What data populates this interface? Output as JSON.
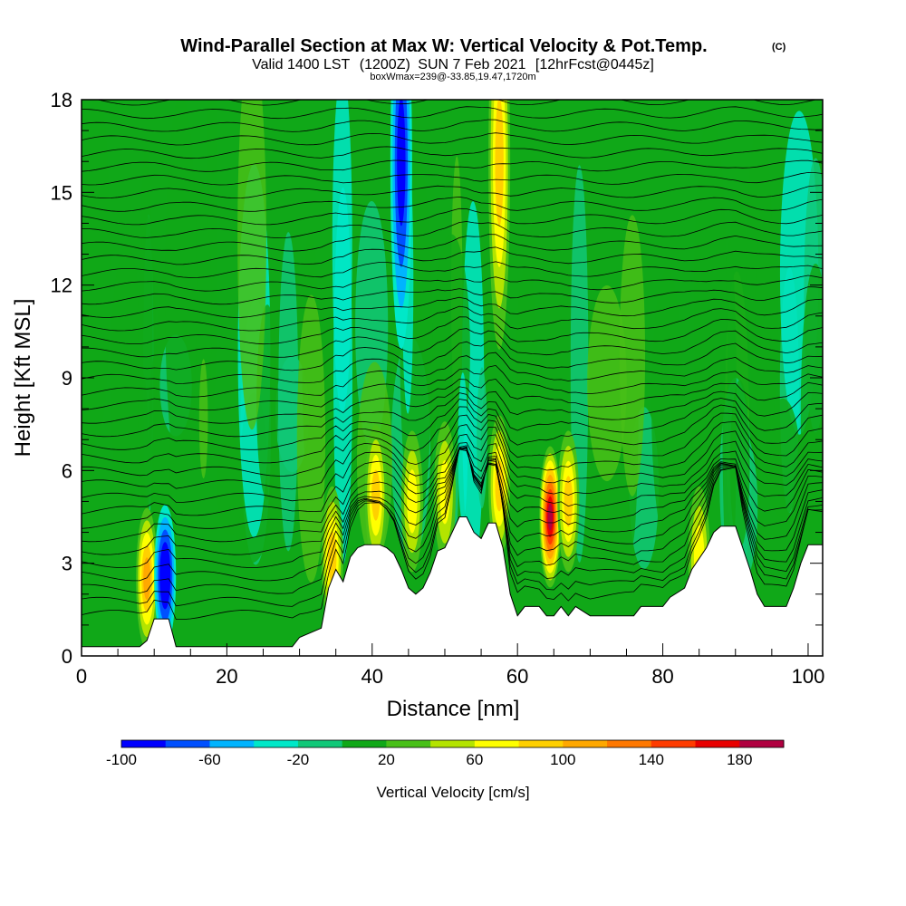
{
  "chart_data": {
    "type": "heatmap",
    "title": "Wind-Parallel Section at Max W: Vertical Velocity & Pot.Temp.",
    "title_mark": "(C)",
    "subtitle_main": "Valid 1400 LST",
    "subtitle_z": "(1200Z)",
    "subtitle_date": "SUN 7 Feb 2021",
    "subtitle_fcst": "[12hrFcst@0445z]",
    "info_line": "boxWmax=239@-33.85,19.47,1720m",
    "xlabel": "Distance [nm]",
    "ylabel": "Height [Kft MSL]",
    "xlim": [
      0,
      102
    ],
    "ylim": [
      0,
      18
    ],
    "x_ticks": [
      0,
      20,
      40,
      60,
      80,
      100
    ],
    "y_ticks": [
      0,
      3,
      6,
      9,
      12,
      15,
      18
    ],
    "colorbar": {
      "label": "Vertical Velocity [cm/s]",
      "range": [
        -100,
        200
      ],
      "step": 20,
      "tick_values": [
        -100,
        -60,
        -20,
        20,
        60,
        100,
        140,
        180
      ],
      "tick_labels": [
        "-100",
        "-60",
        "-20",
        "20",
        "60",
        "100",
        "140",
        "180"
      ],
      "colors": [
        "#0000ff",
        "#0050ff",
        "#00b4ff",
        "#00e8c8",
        "#10c878",
        "#10a818",
        "#48c018",
        "#b4e400",
        "#ffff00",
        "#ffd000",
        "#ffa800",
        "#ff7800",
        "#ff3c00",
        "#e80000",
        "#b00040"
      ]
    },
    "terrain_kft": [
      [
        0,
        0.3
      ],
      [
        8,
        0.3
      ],
      [
        9,
        0.5
      ],
      [
        10,
        1.2
      ],
      [
        12,
        1.2
      ],
      [
        13,
        0.3
      ],
      [
        29,
        0.3
      ],
      [
        30,
        0.6
      ],
      [
        33,
        0.9
      ],
      [
        34,
        2.2
      ],
      [
        35,
        2.8
      ],
      [
        36,
        2.4
      ],
      [
        37,
        3.2
      ],
      [
        38,
        3.5
      ],
      [
        39,
        3.6
      ],
      [
        40,
        3.6
      ],
      [
        41,
        3.6
      ],
      [
        42,
        3.5
      ],
      [
        43,
        3.3
      ],
      [
        44,
        2.8
      ],
      [
        45,
        2.2
      ],
      [
        46,
        2.0
      ],
      [
        47,
        2.2
      ],
      [
        48,
        2.7
      ],
      [
        49,
        3.4
      ],
      [
        50,
        3.5
      ],
      [
        51,
        4.0
      ],
      [
        52,
        4.5
      ],
      [
        53,
        4.5
      ],
      [
        54,
        4.0
      ],
      [
        55,
        3.8
      ],
      [
        56,
        4.3
      ],
      [
        57,
        4.3
      ],
      [
        58,
        3.5
      ],
      [
        59,
        2.0
      ],
      [
        60,
        1.3
      ],
      [
        61,
        1.6
      ],
      [
        63,
        1.6
      ],
      [
        64,
        1.3
      ],
      [
        65,
        1.3
      ],
      [
        66,
        1.6
      ],
      [
        67,
        1.3
      ],
      [
        68,
        1.6
      ],
      [
        70,
        1.3
      ],
      [
        73,
        1.3
      ],
      [
        75,
        1.3
      ],
      [
        76,
        1.3
      ],
      [
        77,
        1.6
      ],
      [
        80,
        1.6
      ],
      [
        81,
        1.9
      ],
      [
        83,
        2.2
      ],
      [
        84,
        2.8
      ],
      [
        86,
        3.5
      ],
      [
        87,
        4.0
      ],
      [
        88,
        4.2
      ],
      [
        90,
        4.2
      ],
      [
        91,
        3.5
      ],
      [
        92,
        2.8
      ],
      [
        93,
        2.0
      ],
      [
        94,
        1.6
      ],
      [
        97,
        1.6
      ],
      [
        98,
        2.2
      ],
      [
        99,
        3.0
      ],
      [
        100,
        3.6
      ],
      [
        102,
        3.6
      ]
    ],
    "updraft_cores": [
      {
        "x": 9,
        "z": 2.5,
        "w": 100
      },
      {
        "x": 11.5,
        "z": 2.6,
        "w": -100
      },
      {
        "x": 34.5,
        "z": 3.2,
        "w": 80
      },
      {
        "x": 40.5,
        "z": 5.2,
        "w": 80
      },
      {
        "x": 44,
        "z": 16.0,
        "w": -80
      },
      {
        "x": 45.5,
        "z": 5.0,
        "w": 60
      },
      {
        "x": 50,
        "z": 5.3,
        "w": 60
      },
      {
        "x": 57.5,
        "z": 5.5,
        "w": 80
      },
      {
        "x": 57.5,
        "z": 16.0,
        "w": 80
      },
      {
        "x": 64.5,
        "z": 4.5,
        "w": 180
      },
      {
        "x": 67,
        "z": 5.0,
        "w": 80
      },
      {
        "x": 85,
        "z": 3.2,
        "w": 60
      }
    ]
  }
}
